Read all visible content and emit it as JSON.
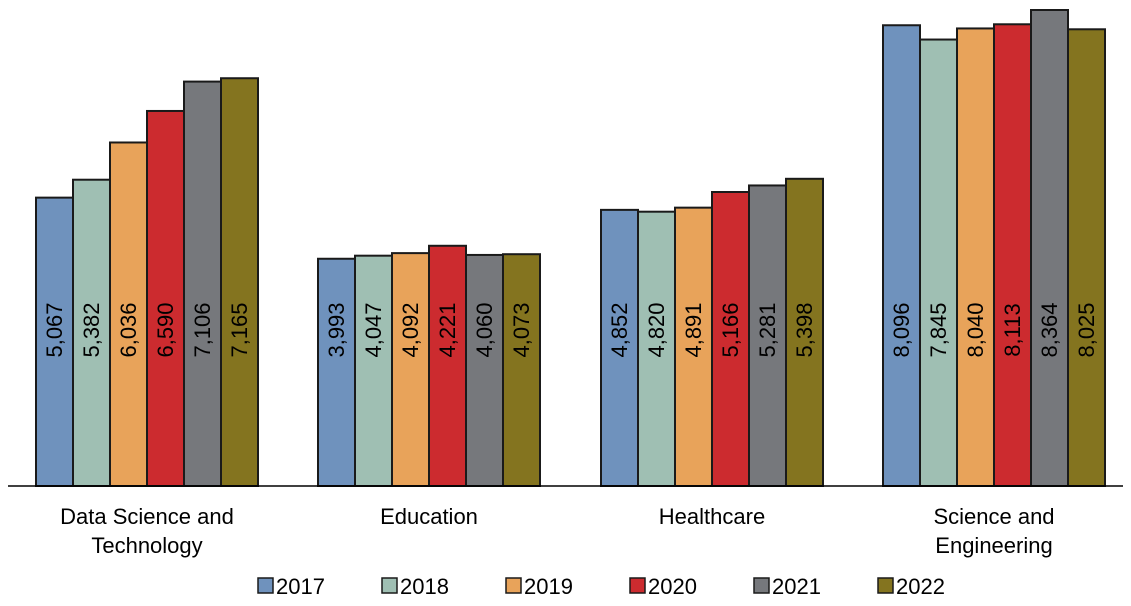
{
  "chart_data": {
    "type": "bar",
    "title": "",
    "xlabel": "",
    "ylabel": "",
    "categories": [
      "Data Science and\nTechnology",
      "Education",
      "Healthcare",
      "Science and\nEngineering"
    ],
    "series": [
      {
        "name": "2017",
        "color": "#6f92bd",
        "values": [
          5067,
          3993,
          4852,
          8096
        ],
        "labels": [
          "5,067",
          "3,993",
          "4,852",
          "8,096"
        ]
      },
      {
        "name": "2018",
        "color": "#9fbfb3",
        "values": [
          5382,
          4047,
          4820,
          7845
        ],
        "labels": [
          "5,382",
          "4,047",
          "4,820",
          "7,845"
        ]
      },
      {
        "name": "2019",
        "color": "#e8a35a",
        "values": [
          6036,
          4092,
          4891,
          8040
        ],
        "labels": [
          "6,036",
          "4,092",
          "4,891",
          "8,040"
        ]
      },
      {
        "name": "2020",
        "color": "#cc2b2f",
        "values": [
          6590,
          4221,
          5166,
          8113
        ],
        "labels": [
          "6,590",
          "4,221",
          "5,166",
          "8,113"
        ]
      },
      {
        "name": "2021",
        "color": "#76787c",
        "values": [
          7106,
          4060,
          5281,
          8364
        ],
        "labels": [
          "7,106",
          "4,060",
          "5,281",
          "8,364"
        ]
      },
      {
        "name": "2022",
        "color": "#84741f",
        "values": [
          7165,
          4073,
          5398,
          8025
        ],
        "labels": [
          "7,165",
          "4,073",
          "5,398",
          "8,025"
        ]
      }
    ],
    "ylim": [
      0,
      8364
    ],
    "grid": false,
    "legend_position": "bottom"
  }
}
